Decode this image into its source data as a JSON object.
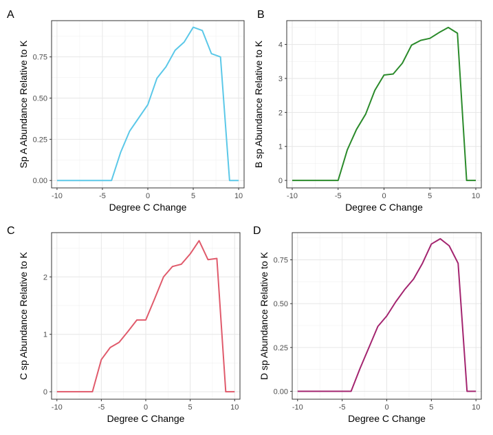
{
  "chart_data": [
    {
      "panel_label": "A",
      "type": "line",
      "xlabel": "Degree C Change",
      "ylabel": "Sp A Abundance Relative to K",
      "color": "#5bc8e8",
      "grid": true,
      "xlim": [
        -10.6,
        10.6
      ],
      "ylim": [
        -0.045,
        0.97
      ],
      "xticks": [
        -10,
        -5,
        0,
        5,
        10
      ],
      "xtick_labels": [
        "-10",
        "-5",
        "0",
        "5",
        "10"
      ],
      "yticks": [
        0,
        0.25,
        0.5,
        0.75
      ],
      "ytick_labels": [
        "0.00",
        "0.25",
        "0.50",
        "0.75"
      ],
      "series": [
        {
          "x": [
            -10,
            -9,
            -8,
            -7,
            -6,
            -5,
            -4,
            -3,
            -2,
            -1,
            0,
            1,
            2,
            3,
            4,
            5,
            6,
            7,
            8,
            9,
            10
          ],
          "y": [
            0,
            0,
            0,
            0,
            0,
            0,
            0,
            0.17,
            0.3,
            0.38,
            0.46,
            0.62,
            0.69,
            0.79,
            0.84,
            0.93,
            0.91,
            0.77,
            0.75,
            0,
            0
          ]
        }
      ]
    },
    {
      "panel_label": "B",
      "type": "line",
      "xlabel": "Degree C Change",
      "ylabel": "B sp Abundance Relative to K",
      "color": "#2a8a2a",
      "grid": true,
      "xlim": [
        -10.6,
        10.6
      ],
      "ylim": [
        -0.22,
        4.7
      ],
      "xticks": [
        -10,
        -5,
        0,
        5,
        10
      ],
      "xtick_labels": [
        "-10",
        "-5",
        "0",
        "5",
        "10"
      ],
      "yticks": [
        0,
        1,
        2,
        3,
        4
      ],
      "ytick_labels": [
        "0",
        "1",
        "2",
        "3",
        "4"
      ],
      "series": [
        {
          "x": [
            -10,
            -9,
            -8,
            -7,
            -6,
            -5,
            -4,
            -3,
            -2,
            -1,
            0,
            1,
            2,
            3,
            4,
            5,
            6,
            7,
            8,
            9,
            10
          ],
          "y": [
            0,
            0,
            0,
            0,
            0,
            0,
            0.9,
            1.5,
            1.95,
            2.65,
            3.1,
            3.13,
            3.45,
            3.98,
            4.12,
            4.18,
            4.35,
            4.5,
            4.33,
            0,
            0
          ]
        }
      ]
    },
    {
      "panel_label": "C",
      "type": "line",
      "xlabel": "Degree C Change",
      "ylabel": "C sp Abundance Relative to K",
      "color": "#e05a6b",
      "grid": true,
      "xlim": [
        -10.6,
        10.6
      ],
      "ylim": [
        -0.13,
        2.77
      ],
      "xticks": [
        -10,
        -5,
        0,
        5,
        10
      ],
      "xtick_labels": [
        "-10",
        "-5",
        "0",
        "5",
        "10"
      ],
      "yticks": [
        0,
        1,
        2
      ],
      "ytick_labels": [
        "0",
        "1",
        "2"
      ],
      "series": [
        {
          "x": [
            -10,
            -9,
            -8,
            -7,
            -6,
            -5,
            -4,
            -3,
            -2,
            -1,
            0,
            1,
            2,
            3,
            4,
            5,
            6,
            7,
            8,
            9,
            10
          ],
          "y": [
            0,
            0,
            0,
            0,
            0,
            0.56,
            0.77,
            0.86,
            1.05,
            1.25,
            1.25,
            1.62,
            2.0,
            2.18,
            2.22,
            2.4,
            2.63,
            2.3,
            2.32,
            0,
            0
          ]
        }
      ]
    },
    {
      "panel_label": "D",
      "type": "line",
      "xlabel": "Degree C Change",
      "ylabel": "D sp Abundance Relative to K",
      "color": "#a3246f",
      "grid": true,
      "xlim": [
        -10.6,
        10.6
      ],
      "ylim": [
        -0.045,
        0.905
      ],
      "xticks": [
        -10,
        -5,
        0,
        5,
        10
      ],
      "xtick_labels": [
        "-10",
        "-5",
        "0",
        "5",
        "10"
      ],
      "yticks": [
        0,
        0.25,
        0.5,
        0.75
      ],
      "ytick_labels": [
        "0.00",
        "0.25",
        "0.50",
        "0.75"
      ],
      "series": [
        {
          "x": [
            -10,
            -9,
            -8,
            -7,
            -6,
            -5,
            -4,
            -3,
            -2,
            -1,
            0,
            1,
            2,
            3,
            4,
            5,
            6,
            7,
            8,
            9,
            10
          ],
          "y": [
            0,
            0,
            0,
            0,
            0,
            0,
            0,
            0.13,
            0.25,
            0.37,
            0.43,
            0.51,
            0.58,
            0.64,
            0.73,
            0.84,
            0.87,
            0.83,
            0.73,
            0,
            0
          ]
        }
      ]
    }
  ]
}
